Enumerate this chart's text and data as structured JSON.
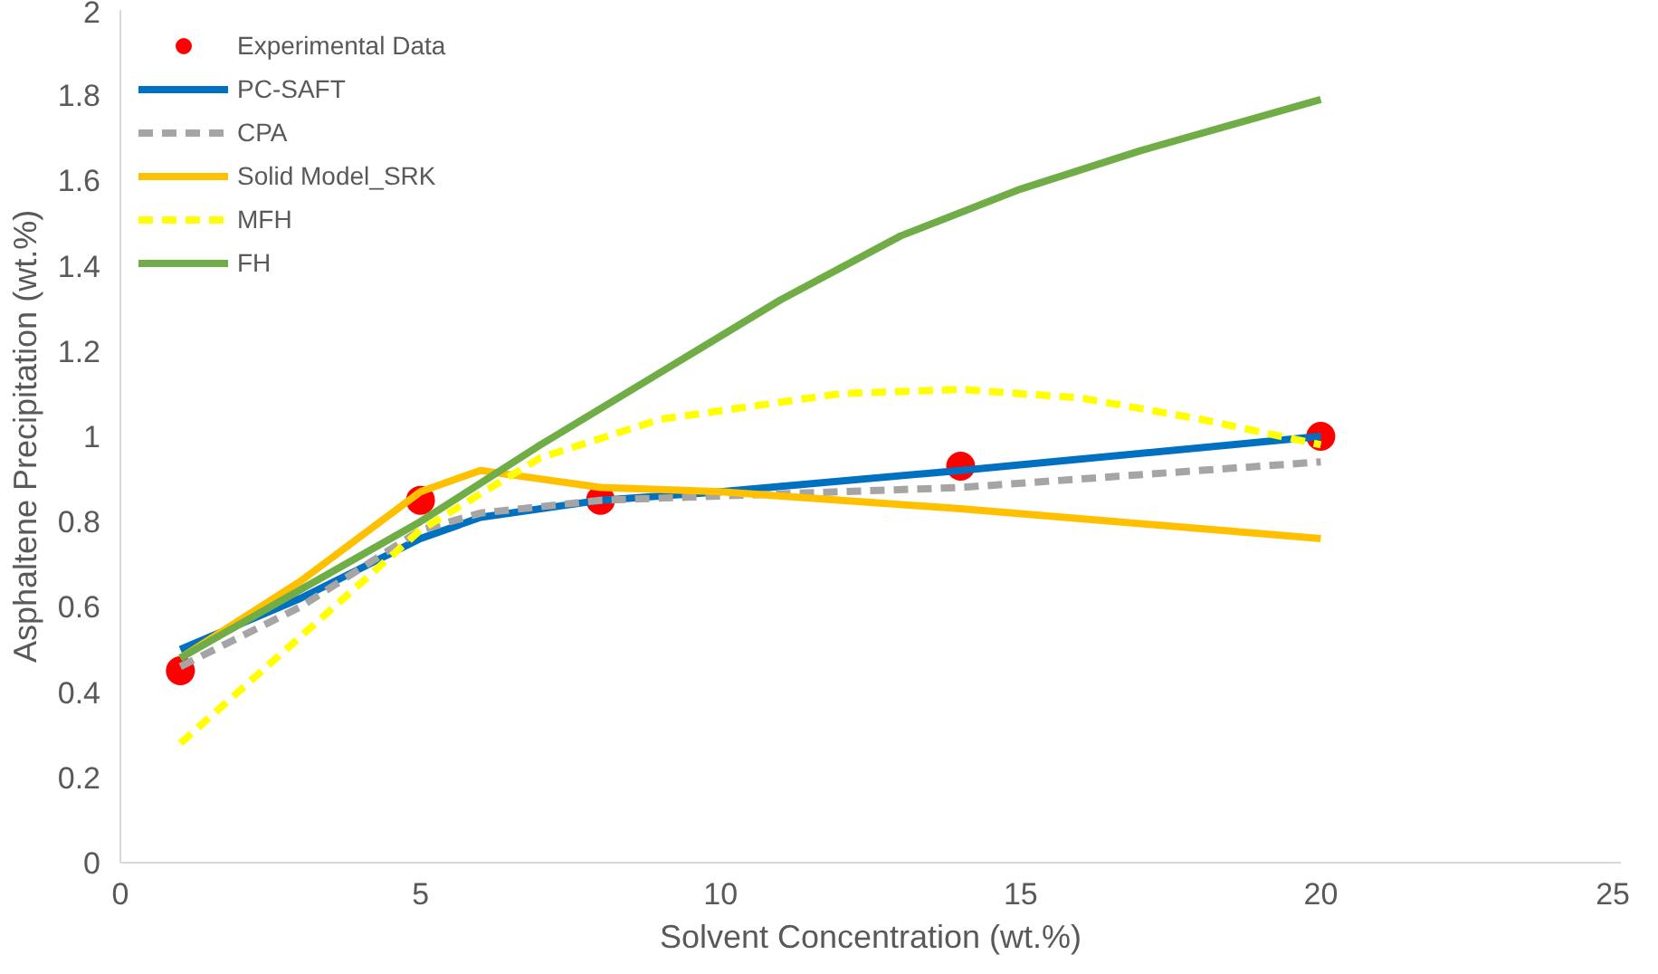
{
  "chart_data": {
    "type": "line",
    "xlabel": "Solvent Concentration (wt.%)",
    "ylabel": "Asphaltene Precipitation (wt.%)",
    "xlim": [
      0,
      25
    ],
    "ylim": [
      0,
      2
    ],
    "xticks": [
      0,
      5,
      10,
      15,
      20,
      25
    ],
    "yticks": [
      0,
      {
        "value": 0.2,
        "label": "0.2"
      },
      {
        "value": 0.4,
        "label": "0.4"
      },
      {
        "value": 0.6,
        "label": "0.6"
      },
      {
        "value": 0.8,
        "label": "0.8"
      },
      1,
      {
        "value": 1.2,
        "label": "1.2"
      },
      {
        "value": 1.4,
        "label": "1.4"
      },
      {
        "value": 1.6,
        "label": "1.6"
      },
      {
        "value": 1.8,
        "label": "1.8"
      },
      2
    ],
    "grid": false,
    "legend": "top left",
    "series": [
      {
        "name": "Experimental Data",
        "type": "scatter",
        "marker": "circle",
        "color": "#ff0000",
        "x": [
          1,
          5,
          8,
          14,
          20
        ],
        "values": [
          0.45,
          0.85,
          0.85,
          0.93,
          1.0
        ]
      },
      {
        "name": "PC-SAFT",
        "color": "#0070c0",
        "line_style": "solid",
        "x": [
          1,
          3,
          5,
          6,
          8,
          10,
          14,
          20
        ],
        "values": [
          0.5,
          0.62,
          0.76,
          0.81,
          0.85,
          0.87,
          0.92,
          1.0
        ]
      },
      {
        "name": "CPA",
        "color": "#a5a5a5",
        "line_style": "dashed",
        "x": [
          1,
          3,
          5,
          6,
          8,
          10,
          14,
          20
        ],
        "values": [
          0.46,
          0.6,
          0.78,
          0.82,
          0.85,
          0.86,
          0.88,
          0.94
        ]
      },
      {
        "name": "Solid Model_SRK",
        "color": "#ffc000",
        "line_style": "solid",
        "x": [
          1,
          3,
          5,
          6,
          7,
          8,
          10,
          14,
          20
        ],
        "values": [
          0.48,
          0.66,
          0.87,
          0.92,
          0.9,
          0.88,
          0.87,
          0.83,
          0.76
        ]
      },
      {
        "name": "MFH",
        "color": "#ffff00",
        "line_style": "dashed",
        "x": [
          1,
          3,
          5,
          7,
          9,
          12,
          14,
          16,
          18,
          20
        ],
        "values": [
          0.28,
          0.53,
          0.78,
          0.95,
          1.04,
          1.1,
          1.11,
          1.09,
          1.04,
          0.98
        ]
      },
      {
        "name": "FH",
        "color": "#70ad47",
        "line_style": "solid",
        "x": [
          1,
          3,
          5,
          7,
          9,
          11,
          13,
          15,
          17,
          20
        ],
        "values": [
          0.48,
          0.64,
          0.8,
          0.98,
          1.15,
          1.32,
          1.47,
          1.58,
          1.67,
          1.79
        ]
      }
    ]
  }
}
